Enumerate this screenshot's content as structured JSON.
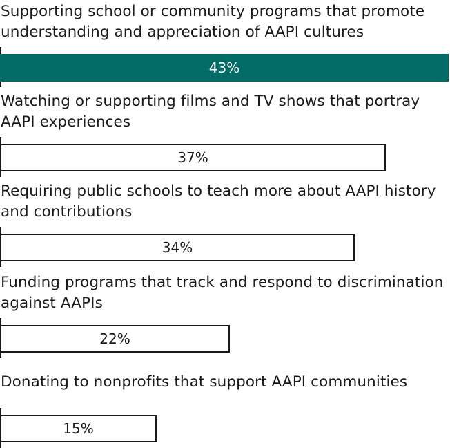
{
  "chart_data": {
    "type": "bar",
    "orientation": "horizontal",
    "categories": [
      "Supporting school or community programs that promote understanding and appreciation of AAPI cultures",
      "Watching or supporting films and TV shows that portray AAPI experiences",
      "Requiring public schools to teach more about AAPI history and contributions",
      "Funding programs that track and respond to discrimination against AAPIs",
      "Donating to nonprofits that support AAPI communities"
    ],
    "values": [
      43,
      37,
      34,
      22,
      15
    ],
    "value_labels": [
      "43%",
      "37%",
      "34%",
      "22%",
      "15%"
    ],
    "unit": "%",
    "xlim": [
      0,
      43
    ],
    "grid": false,
    "legend": "none",
    "title": "",
    "xlabel": "",
    "ylabel": ""
  },
  "colors": {
    "highlight_fill": "#036b66",
    "highlight_text": "#ffffff",
    "default_fill": "#ffffff",
    "default_text": "#1a1a1a",
    "outline": "#1a1a1a"
  }
}
